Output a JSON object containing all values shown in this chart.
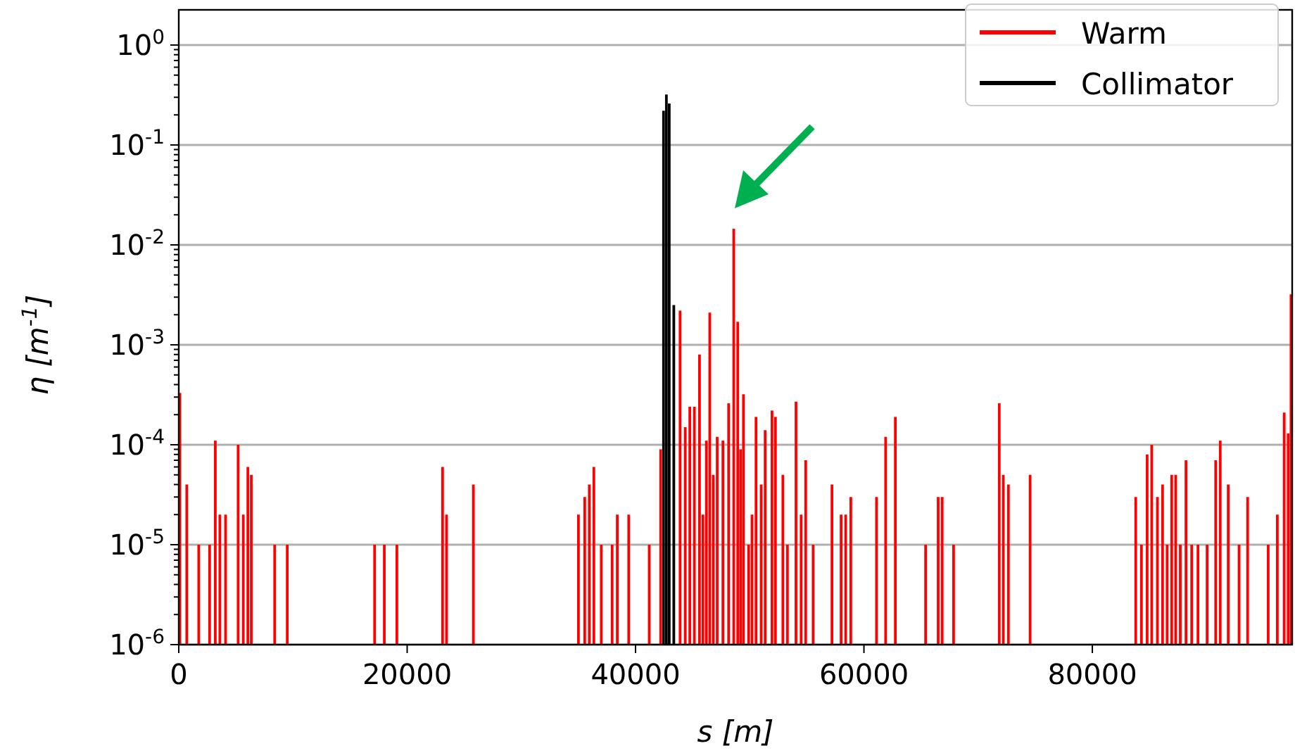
{
  "chart_data": {
    "type": "bar",
    "xlabel": "s [m]",
    "ylabel": "η [m$^{-1}$]",
    "log": "y",
    "grid": "y",
    "legend": "top right",
    "xlim": [
      0,
      97500
    ],
    "xticks": [
      0,
      20000,
      40000,
      60000,
      80000
    ],
    "ylim": [
      1e-06,
      1
    ],
    "yticks": [
      {
        "value": 1e-06,
        "label": "10$^{-6}$"
      },
      {
        "value": 1e-05,
        "label": "10$^{-5}$"
      },
      {
        "value": 0.0001,
        "label": "10$^{-4}$"
      },
      {
        "value": 0.001,
        "label": "10$^{-3}$"
      },
      {
        "value": 0.01,
        "label": "10$^{-2}$"
      },
      {
        "value": 0.1,
        "label": "10$^{-1}$"
      },
      {
        "value": 1,
        "label": "10$^{0}$"
      }
    ],
    "series": [
      {
        "name": "Warm",
        "color": "#ff0000",
        "x": [
          100,
          700,
          1750,
          2700,
          3200,
          3600,
          4100,
          5200,
          5650,
          6050,
          6350,
          8400,
          9500,
          17150,
          18000,
          19100,
          23100,
          23450,
          25800,
          35000,
          35550,
          35950,
          36350,
          37000,
          37950,
          38400,
          39400,
          41200,
          42200,
          43900,
          44350,
          44750,
          45150,
          45600,
          45900,
          46200,
          46500,
          46800,
          47150,
          47650,
          48150,
          48600,
          48950,
          49200,
          49450,
          49900,
          50200,
          50550,
          51000,
          51350,
          51950,
          52250,
          52900,
          53300,
          54050,
          54500,
          54900,
          55550,
          57200,
          58000,
          58400,
          58850,
          61100,
          61900,
          62750,
          65400,
          66500,
          66850,
          67850,
          71850,
          72200,
          72650,
          74550,
          83800,
          84300,
          84800,
          85200,
          85700,
          86150,
          86550,
          86950,
          87300,
          87700,
          88200,
          88700,
          89250,
          90050,
          90800,
          91200,
          91900,
          92850,
          93600,
          95400,
          96200,
          96800,
          97150,
          97400
        ],
        "values": [
          0.00033,
          4e-05,
          1e-05,
          1e-05,
          0.00011,
          2e-05,
          2e-05,
          0.0001,
          2e-05,
          6e-05,
          5e-05,
          1e-05,
          1e-05,
          1e-05,
          1e-05,
          1e-05,
          6e-05,
          2e-05,
          4e-05,
          2e-05,
          3e-05,
          4e-05,
          6e-05,
          1e-05,
          1e-05,
          2e-05,
          2e-05,
          1e-05,
          9e-05,
          0.0022,
          0.00015,
          0.00024,
          0.00024,
          0.0008,
          2e-05,
          0.00011,
          0.0021,
          5e-05,
          0.00012,
          0.00011,
          0.00026,
          0.0145,
          0.0017,
          9e-05,
          0.00032,
          1e-05,
          2e-05,
          0.00019,
          4e-05,
          0.00014,
          0.00022,
          0.00019,
          5e-05,
          1e-05,
          0.00027,
          2e-05,
          7e-05,
          1e-05,
          4e-05,
          2e-05,
          2e-05,
          3e-05,
          3e-05,
          0.00012,
          0.00019,
          1e-05,
          3e-05,
          3e-05,
          1e-05,
          0.00026,
          5e-05,
          4e-05,
          5e-05,
          3e-05,
          1e-05,
          8e-05,
          0.0001,
          3e-05,
          4e-05,
          1e-05,
          5e-05,
          5e-05,
          1e-05,
          7e-05,
          1e-05,
          1e-05,
          1e-05,
          7e-05,
          0.00011,
          4e-05,
          1e-05,
          3e-05,
          1e-05,
          2e-05,
          0.00021,
          0.00013,
          0.0032
        ]
      },
      {
        "name": "Collimator",
        "color": "#000000",
        "x": [
          42450,
          42700,
          42950,
          43350
        ],
        "values": [
          0.22,
          0.32,
          0.26,
          0.0025
        ]
      }
    ]
  }
}
